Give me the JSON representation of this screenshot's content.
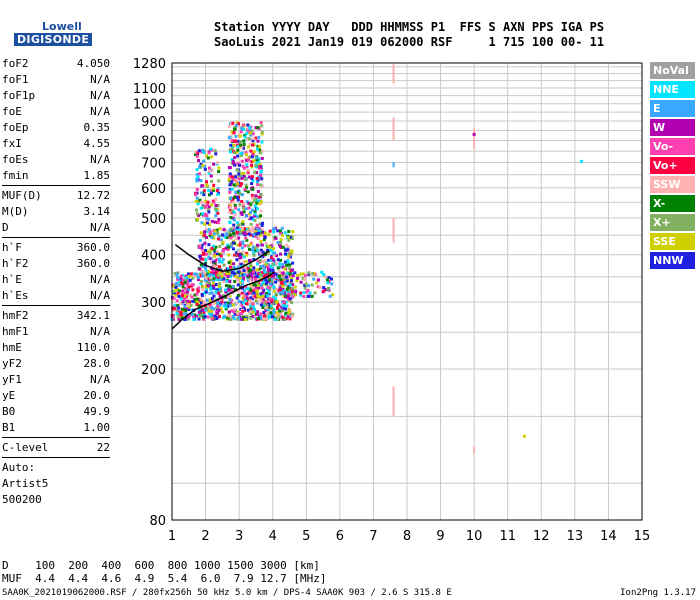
{
  "logo": {
    "line1": "Lowell",
    "line2": "DIGISONDE"
  },
  "header": {
    "line1": "Station YYYY DAY   DDD HHMMSS P1  FFS S AXN PPS IGA PS",
    "line2": "SaoLuis 2021 Jan19 019 062000 RSF     1 715 100 00- 11"
  },
  "params": [
    {
      "label": "foF2",
      "value": "4.050"
    },
    {
      "label": "foF1",
      "value": "N/A"
    },
    {
      "label": "foF1p",
      "value": "N/A"
    },
    {
      "label": "foE",
      "value": "N/A"
    },
    {
      "label": "foEp",
      "value": "0.35"
    },
    {
      "label": "fxI",
      "value": "4.55"
    },
    {
      "label": "foEs",
      "value": "N/A"
    },
    {
      "label": "fmin",
      "value": "1.85"
    },
    {
      "sep": true
    },
    {
      "label": "MUF(D)",
      "value": "12.72"
    },
    {
      "label": "M(D)",
      "value": "3.14"
    },
    {
      "label": "D",
      "value": "N/A"
    },
    {
      "sep": true
    },
    {
      "label": "h`F",
      "value": "360.0"
    },
    {
      "label": "h`F2",
      "value": "360.0"
    },
    {
      "label": "h`E",
      "value": "N/A"
    },
    {
      "label": "h`Es",
      "value": "N/A"
    },
    {
      "sep": true
    },
    {
      "label": "hmF2",
      "value": "342.1"
    },
    {
      "label": "hmF1",
      "value": "N/A"
    },
    {
      "label": "hmE",
      "value": "110.0"
    },
    {
      "label": "yF2",
      "value": "28.0"
    },
    {
      "label": "yF1",
      "value": "N/A"
    },
    {
      "label": "yE",
      "value": "20.0"
    },
    {
      "label": "B0",
      "value": "49.9"
    },
    {
      "label": "B1",
      "value": "1.00"
    },
    {
      "sep": true
    },
    {
      "label": "C-level",
      "value": "22"
    },
    {
      "sep": true
    }
  ],
  "auto": {
    "line1": "Auto:",
    "line2": "Artist5",
    "line3": "500200"
  },
  "legend": [
    {
      "label": "NoVal",
      "color": "#a0a0a0"
    },
    {
      "label": "NNE",
      "color": "#00e5ff"
    },
    {
      "label": "E",
      "color": "#3aa8ff"
    },
    {
      "label": "W",
      "color": "#b000b0"
    },
    {
      "label": "Vo-",
      "color": "#ff40b0"
    },
    {
      "label": "Vo+",
      "color": "#ff0040"
    },
    {
      "label": "SSW",
      "color": "#ffb0b0"
    },
    {
      "label": "X-",
      "color": "#008000"
    },
    {
      "label": "X+",
      "color": "#80b060"
    },
    {
      "label": "SSE",
      "color": "#d0d000"
    },
    {
      "label": "NNW",
      "color": "#2020e0"
    }
  ],
  "muf_table": {
    "line1": "D    100  200  400  600  800 1000 1500 3000 [km]",
    "line2": "MUF  4.4  4.4  4.6  4.9  5.4  6.0  7.9 12.7 [MHz]"
  },
  "footer": {
    "left": "SAA0K_2021019062000.RSF / 280fx256h 50 kHz 5.0 km / DPS-4 SAA0K 903 / 2.6 S 315.8 E",
    "right": "Ion2Png 1.3.17"
  },
  "chart_data": {
    "type": "scatter",
    "xlim": [
      1,
      15
    ],
    "ylim": [
      80,
      1280
    ],
    "y_scale": "log",
    "x_ticks": [
      1,
      2,
      3,
      4,
      5,
      6,
      7,
      8,
      9,
      10,
      11,
      12,
      13,
      14,
      15
    ],
    "y_ticks": [
      80,
      200,
      300,
      400,
      500,
      600,
      700,
      800,
      900,
      1000,
      1100,
      1280
    ],
    "grid": true,
    "legend_position": "right",
    "trace_curve": {
      "x": [
        1.0,
        1.3,
        1.7,
        2.2,
        2.7,
        3.2,
        3.6,
        3.9,
        4.05
      ],
      "y": [
        255,
        270,
        287,
        300,
        315,
        332,
        342,
        352,
        360
      ]
    },
    "trace_curve_upper": {
      "x": [
        1.1,
        1.5,
        2.0,
        2.5,
        3.0,
        3.5,
        3.9
      ],
      "y": [
        425,
        400,
        375,
        362,
        368,
        388,
        410
      ]
    },
    "clusters": [
      {
        "x": [
          1.0,
          4.6
        ],
        "y": [
          270,
          360
        ],
        "n": 900
      },
      {
        "x": [
          1.8,
          4.6
        ],
        "y": [
          350,
          470
        ],
        "n": 500
      },
      {
        "x": [
          2.7,
          3.7
        ],
        "y": [
          450,
          900
        ],
        "n": 380
      },
      {
        "x": [
          1.7,
          2.4
        ],
        "y": [
          480,
          760
        ],
        "n": 130
      },
      {
        "x": [
          4.2,
          5.8
        ],
        "y": [
          310,
          360
        ],
        "n": 90
      }
    ],
    "verticals": [
      {
        "x": 7.6,
        "y": [
          1130,
          1270
        ],
        "color": "#ffb0b0"
      },
      {
        "x": 7.6,
        "y": [
          800,
          920
        ],
        "color": "#ffb0b0"
      },
      {
        "x": 7.6,
        "y": [
          430,
          500
        ],
        "color": "#ffb0b0"
      },
      {
        "x": 7.6,
        "y": [
          150,
          180
        ],
        "color": "#ffb0b0"
      },
      {
        "x": 7.6,
        "y": [
          680,
          700
        ],
        "color": "#3aa8ff"
      },
      {
        "x": 10.0,
        "y": [
          760,
          860
        ],
        "color": "#ffb0b0"
      },
      {
        "x": 10.0,
        "y": [
          120,
          125
        ],
        "color": "#ffb0b0"
      }
    ],
    "isolated": [
      {
        "x": 13.2,
        "y": 705,
        "color": "#00e5ff"
      },
      {
        "x": 11.5,
        "y": 133,
        "color": "#d0d000"
      },
      {
        "x": 10.0,
        "y": 830,
        "color": "#b000b0"
      }
    ]
  }
}
